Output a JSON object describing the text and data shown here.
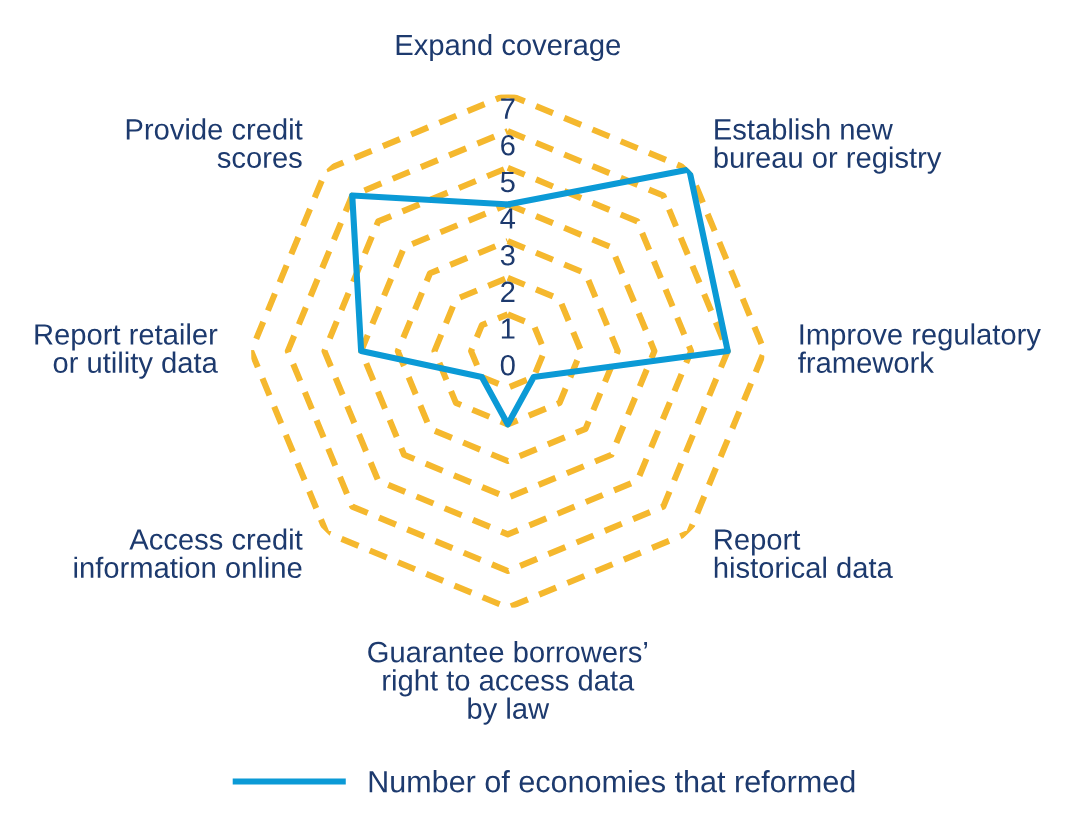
{
  "chart_data": {
    "type": "radar",
    "categories": [
      "Expand coverage",
      "Establish new\nbureau or registry",
      "Improve regulatory\nframework",
      "Report\nhistorical data",
      "Guarantee borrowers’\nright to access data\nby law",
      "Access credit\ninformation online",
      "Report retailer\nor utility data",
      "Provide credit\nscores"
    ],
    "series": [
      {
        "name": "Number of economies that reformed",
        "color": "#0b9ad6",
        "values": [
          4,
          7,
          6,
          1,
          2,
          1,
          4,
          6
        ]
      }
    ],
    "ylim": [
      0,
      7
    ],
    "yticks": [
      0,
      1,
      2,
      3,
      4,
      5,
      6,
      7
    ],
    "grid": true,
    "legend": "bottom",
    "line_style": "solid"
  }
}
